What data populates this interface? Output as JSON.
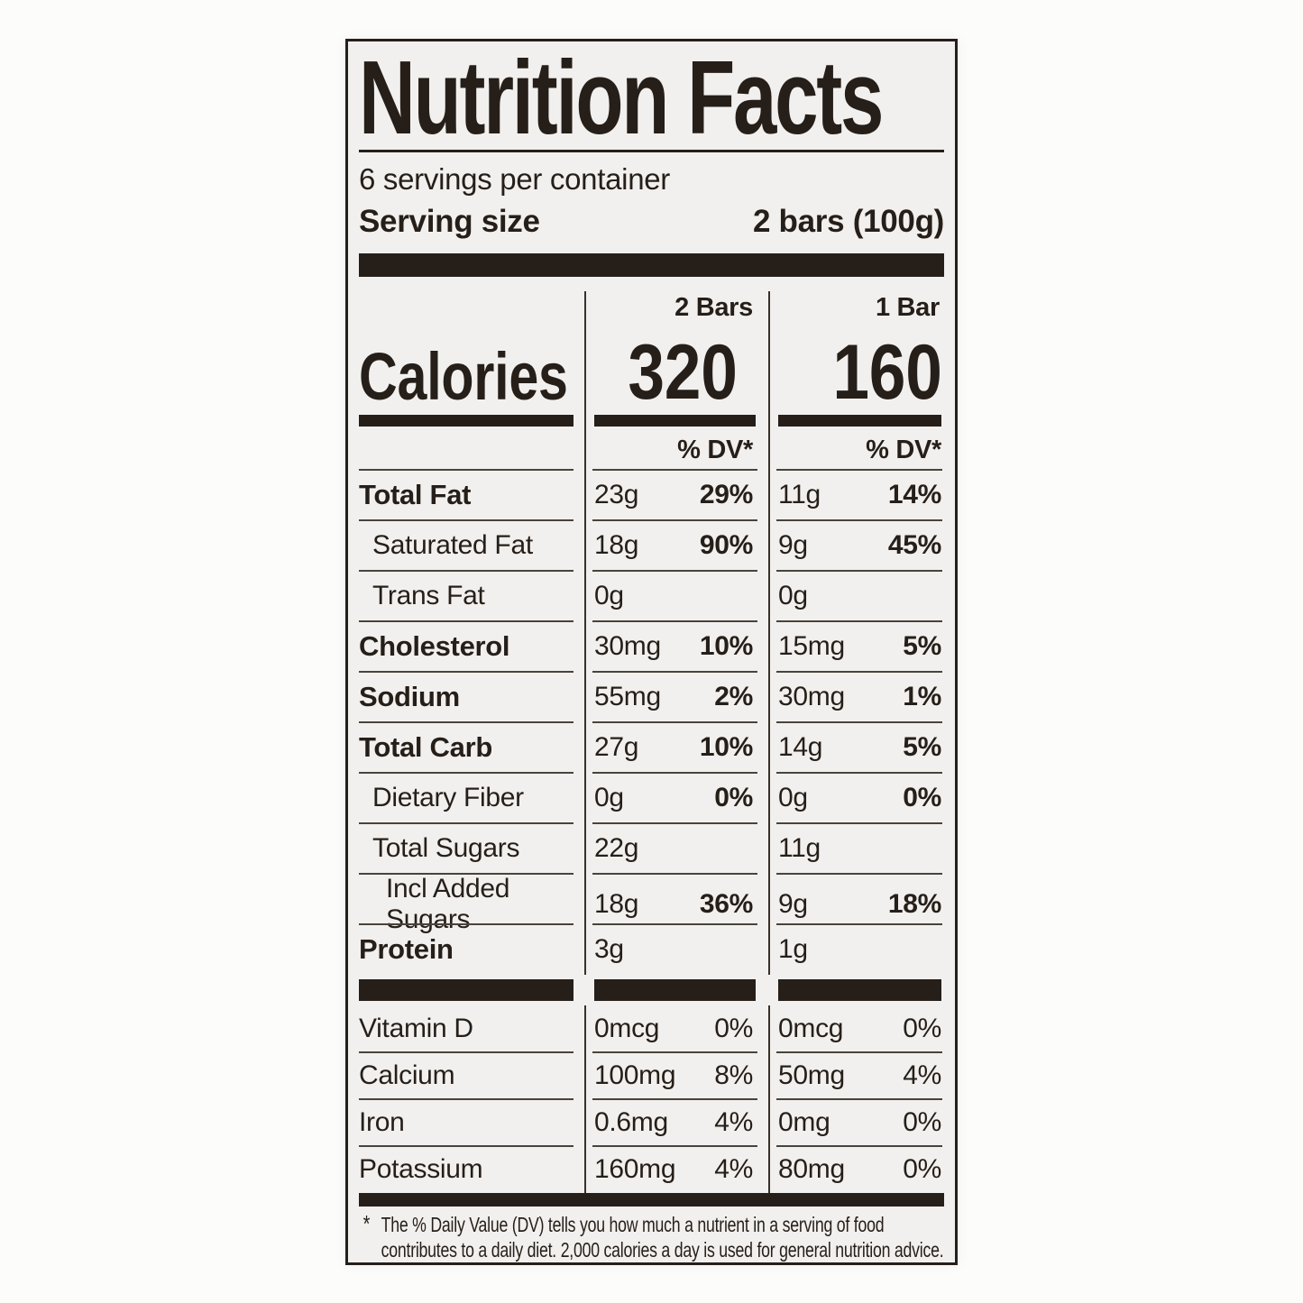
{
  "label": {
    "title": "Nutrition Facts",
    "servings_text": "6 servings per container",
    "serving_size": {
      "label": "Serving size",
      "value": "2 bars (100g)"
    },
    "calories": {
      "label": "Calories",
      "dv_header": "% DV*",
      "columns": [
        {
          "header": "2 Bars",
          "value": "320"
        },
        {
          "header": "1 Bar",
          "value": "160"
        }
      ]
    },
    "nutrients": [
      {
        "name": "Total Fat",
        "style": "bold",
        "cols": [
          {
            "amount": "23g",
            "dv": "29%"
          },
          {
            "amount": "11g",
            "dv": "14%"
          }
        ]
      },
      {
        "name": "Saturated Fat",
        "style": "indent",
        "cols": [
          {
            "amount": "18g",
            "dv": "90%"
          },
          {
            "amount": "9g",
            "dv": "45%"
          }
        ]
      },
      {
        "name": "Trans Fat",
        "style": "indent",
        "cols": [
          {
            "amount": "0g",
            "dv": ""
          },
          {
            "amount": "0g",
            "dv": ""
          }
        ]
      },
      {
        "name": "Cholesterol",
        "style": "bold",
        "cols": [
          {
            "amount": "30mg",
            "dv": "10%"
          },
          {
            "amount": "15mg",
            "dv": "5%"
          }
        ]
      },
      {
        "name": "Sodium",
        "style": "bold",
        "cols": [
          {
            "amount": "55mg",
            "dv": "2%"
          },
          {
            "amount": "30mg",
            "dv": "1%"
          }
        ]
      },
      {
        "name": "Total Carb",
        "style": "bold",
        "cols": [
          {
            "amount": "27g",
            "dv": "10%"
          },
          {
            "amount": "14g",
            "dv": "5%"
          }
        ]
      },
      {
        "name": "Dietary Fiber",
        "style": "indent",
        "cols": [
          {
            "amount": "0g",
            "dv": "0%"
          },
          {
            "amount": "0g",
            "dv": "0%"
          }
        ]
      },
      {
        "name": "Total Sugars",
        "style": "indent",
        "cols": [
          {
            "amount": "22g",
            "dv": ""
          },
          {
            "amount": "11g",
            "dv": ""
          }
        ]
      },
      {
        "name": "Incl Added Sugars",
        "style": "indent2",
        "cols": [
          {
            "amount": "18g",
            "dv": "36%"
          },
          {
            "amount": "9g",
            "dv": "18%"
          }
        ]
      },
      {
        "name": "Protein",
        "style": "bold",
        "cols": [
          {
            "amount": "3g",
            "dv": ""
          },
          {
            "amount": "1g",
            "dv": ""
          }
        ]
      }
    ],
    "minerals": [
      {
        "name": "Vitamin D",
        "style": "plain",
        "cols": [
          {
            "amount": "0mcg",
            "dv": "0%"
          },
          {
            "amount": "0mcg",
            "dv": "0%"
          }
        ]
      },
      {
        "name": "Calcium",
        "style": "plain",
        "cols": [
          {
            "amount": "100mg",
            "dv": "8%"
          },
          {
            "amount": "50mg",
            "dv": "4%"
          }
        ]
      },
      {
        "name": "Iron",
        "style": "plain",
        "cols": [
          {
            "amount": "0.6mg",
            "dv": "4%"
          },
          {
            "amount": "0mg",
            "dv": "0%"
          }
        ]
      },
      {
        "name": "Potassium",
        "style": "plain",
        "cols": [
          {
            "amount": "160mg",
            "dv": "4%"
          },
          {
            "amount": "80mg",
            "dv": "0%"
          }
        ]
      }
    ],
    "footnote": {
      "marker": "*",
      "line1": "The % Daily Value (DV) tells you how much a nutrient in a serving of food",
      "line2": "contributes to a daily diet. 2,000 calories a day is used for general nutrition advice."
    }
  }
}
